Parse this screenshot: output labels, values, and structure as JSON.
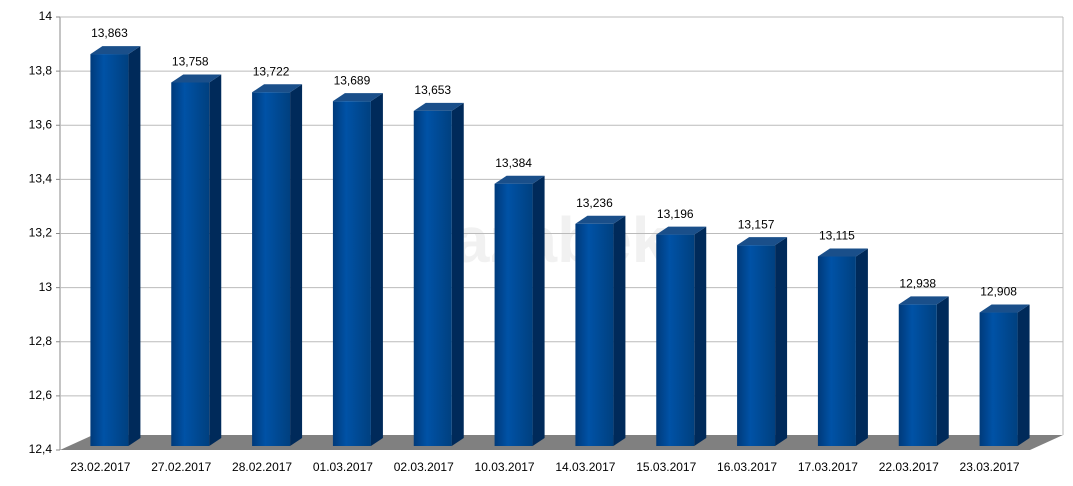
{
  "chart_data": {
    "type": "bar3d",
    "watermark": "tazabek",
    "categories": [
      "23.02.2017",
      "27.02.2017",
      "28.02.2017",
      "01.03.2017",
      "02.03.2017",
      "10.03.2017",
      "14.03.2017",
      "15.03.2017",
      "16.03.2017",
      "17.03.2017",
      "22.03.2017",
      "23.03.2017"
    ],
    "values": [
      13.863,
      13.758,
      13.722,
      13.689,
      13.653,
      13.384,
      13.236,
      13.196,
      13.157,
      13.115,
      12.938,
      12.908
    ],
    "value_labels": [
      "13,863",
      "13,758",
      "13,722",
      "13,689",
      "13,653",
      "13,384",
      "13,236",
      "13,196",
      "13,157",
      "13,115",
      "12,938",
      "12,908"
    ],
    "color": "#004a99",
    "ylim": [
      12.4,
      14
    ],
    "yticks": [
      {
        "value": 12.4,
        "label": "12,4"
      },
      {
        "value": 12.6,
        "label": "12,6"
      },
      {
        "value": 12.8,
        "label": "12,8"
      },
      13,
      {
        "value": 13.2,
        "label": "13,2"
      },
      {
        "value": 13.4,
        "label": "13,4"
      },
      {
        "value": 13.6,
        "label": "13,6"
      },
      {
        "value": 13.8,
        "label": "13,8"
      },
      14
    ],
    "grid": true
  }
}
